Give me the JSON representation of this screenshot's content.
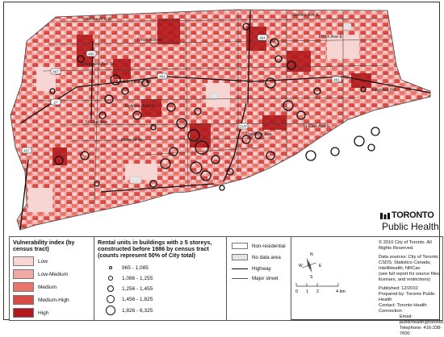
{
  "map": {
    "roads": {
      "steeles_w": "Steeles Ave W",
      "steeles_e": "Steeles Ave E",
      "finch_w": "Finch Ave W",
      "finch_e": "Finch Ave E",
      "sheppard_w": "Sheppard Ave W",
      "lawrence_w": "Lawrence Ave W",
      "eglinton_w": "Eglinton Ave W",
      "st_clair_w": "St Clair Ave",
      "st_clair_e": "St Clair Ave E",
      "bloor_w": "Bloor St W",
      "danforth": "Danforth Ave",
      "kingston": "Kingston Rd"
    },
    "shields": [
      "404",
      "401",
      "401",
      "407",
      "400",
      "427",
      "DVP",
      "27"
    ]
  },
  "logo": {
    "top": "TORONTO",
    "bottom": "Public Health"
  },
  "legend_vuln": {
    "title": "Vulnerability index (by census tract)",
    "items": [
      {
        "label": "Low",
        "color": "#f7d5d3"
      },
      {
        "label": "Low-Medium",
        "color": "#f2a8a4"
      },
      {
        "label": "Medium",
        "color": "#e8746c"
      },
      {
        "label": "Medium-High",
        "color": "#d94a43"
      },
      {
        "label": "High",
        "color": "#b2181b"
      }
    ]
  },
  "legend_rental": {
    "title": "Rental units in buildings with ≥ 5 storeys, constructed before 1986 by census tract (counts represent 50% of City total)",
    "items": [
      {
        "label": "965 - 1,085",
        "size": 4
      },
      {
        "label": "1,086 - 1,255",
        "size": 6
      },
      {
        "label": "1,256 - 1,455",
        "size": 8
      },
      {
        "label": "1,456 - 1,825",
        "size": 10
      },
      {
        "label": "1,826 - 6,325",
        "size": 12
      }
    ]
  },
  "legend_other": {
    "non_residential": "Non-residential",
    "no_data": "No data area",
    "highway": "Highway",
    "major_street": "Major street"
  },
  "scale": {
    "ticks": [
      "0",
      "1",
      "2"
    ],
    "end_label": "4 km"
  },
  "compass": {
    "n": "N",
    "s": "S",
    "e": "E",
    "w": "W"
  },
  "credits": {
    "copyright": "© 2010 City of Toronto. All Rights Reserved.",
    "sources": "Data sources: City of Toronto; CSDS; Statistics Canada; IntelliHealth; NRCan",
    "sources_note": "(see full report for source files, licenses, and restrictions)",
    "published": "Published: 12/2010",
    "prepared_by": "Prepared by: Toronto Public Health",
    "contact": "Contact: Toronto Health Connection",
    "email": "Email: publichealth@toronto.ca",
    "telephone": "Telephone: 416-338-7600"
  }
}
